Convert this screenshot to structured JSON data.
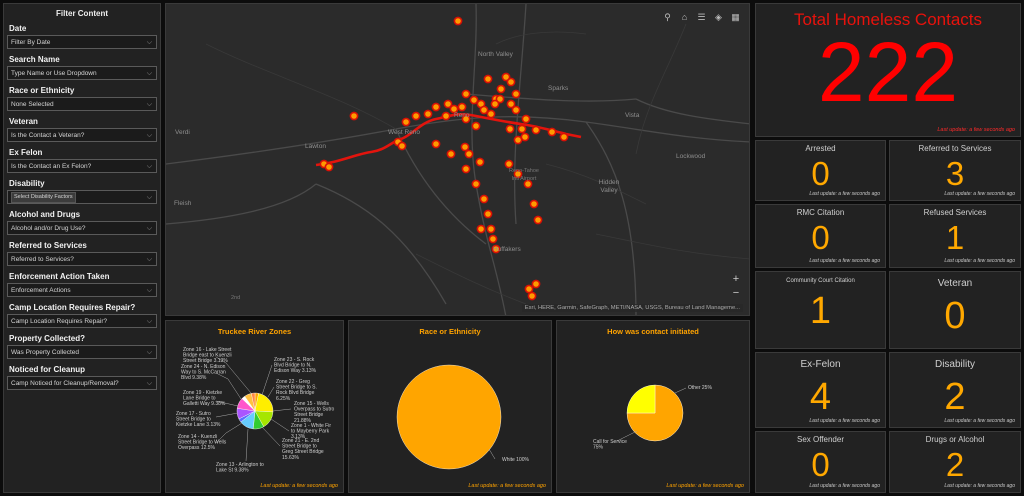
{
  "filter": {
    "title": "Filter Content",
    "fields": [
      {
        "label": "Date",
        "value": "Filter By Date"
      },
      {
        "label": "Search Name",
        "value": "Type Name or Use Dropdown"
      },
      {
        "label": "Race or Ethnicity",
        "value": "None Selected"
      },
      {
        "label": "Veteran",
        "value": "Is the Contact a Veteran?"
      },
      {
        "label": "Ex Felon",
        "value": "Is the Contact an Ex Felon?"
      },
      {
        "label": "Disability",
        "value": "Select Disability Factors"
      },
      {
        "label": "Alcohol and Drugs",
        "value": "Alcohol and/or Drug Use?"
      },
      {
        "label": "Referred to Services",
        "value": "Referred to Services?"
      },
      {
        "label": "Enforcement Action Taken",
        "value": "Enforcement Actions"
      },
      {
        "label": "Camp Location Requires Repair?",
        "value": "Camp Location Requires Repair?"
      },
      {
        "label": "Property Collected?",
        "value": "Was Property Collected"
      },
      {
        "label": "Noticed for Cleanup",
        "value": "Camp Noticed for Cleanup/Removal?"
      }
    ]
  },
  "map": {
    "labels": [
      "North Valley",
      "Sparks",
      "Vista",
      "Verdi",
      "West Reno",
      "Reno",
      "Lawton",
      "Lockwood",
      "Hidden Valley",
      "Huffakers",
      "Reno-Tahoe Intl Airport",
      "Fleish",
      "2nd"
    ],
    "attribution": "Esri, HERE, Garmin, SafeGraph, METI/NASA, USGS, Bureau of Land Manageme..."
  },
  "total": {
    "title": "Total Homeless Contacts",
    "value": "222",
    "updated": "Last update: a few seconds ago",
    "color": "#ff0000"
  },
  "stats": [
    {
      "label": "Arrested",
      "value": "0",
      "updated": "Last update: a few seconds ago"
    },
    {
      "label": "Referred to Services",
      "value": "3",
      "updated": "Last update: a few seconds ago"
    },
    {
      "label": "RMC Citation",
      "value": "0",
      "updated": "Last update: a few seconds ago"
    },
    {
      "label": "Refused Services",
      "value": "1",
      "updated": "Last update: a few seconds ago"
    },
    {
      "label": "Community Court Citation",
      "value": "1",
      "updated": ""
    },
    {
      "label": "Veteran",
      "value": "0",
      "updated": ""
    },
    {
      "label": "Ex-Felon",
      "value": "4",
      "updated": "Last update: a few seconds ago"
    },
    {
      "label": "Disability",
      "value": "2",
      "updated": "Last update: a few seconds ago"
    },
    {
      "label": "Sex Offender",
      "value": "0",
      "updated": "Last update: a few seconds ago"
    },
    {
      "label": "Drugs or Alcohol",
      "value": "2",
      "updated": "Last update: a few seconds ago"
    }
  ],
  "chart_updated": "Last update: a few seconds ago",
  "chart_data": [
    {
      "type": "pie",
      "title": "Truckee River Zones",
      "slices": [
        {
          "label": "Zone 1 - White Fir to Mayberry Park",
          "pct": 3.13,
          "color": "#ffa500"
        },
        {
          "label": "Zone 15 - Wells Overpass to Sutro Street Bridge",
          "pct": 21.88,
          "color": "#ffee00"
        },
        {
          "label": "Zone 21 - E. 2nd Street Bridge to Greg Street Bridge",
          "pct": 15.63,
          "color": "#a6e600"
        },
        {
          "label": "Zone 13 - Arlington to Lake St",
          "pct": 9.38,
          "color": "#33cc33"
        },
        {
          "label": "Zone 14 - Kuenzli Street Bridge to Wells Overpass",
          "pct": 12.5,
          "color": "#66ccff"
        },
        {
          "label": "Zone 17 - Sutro Street Bridge to Kietzke Lane",
          "pct": 3.13,
          "color": "#5b6cff"
        },
        {
          "label": "Zone 19 - Kietzke Lane Bridge to Galletti Way",
          "pct": 9.38,
          "color": "#aa55ff"
        },
        {
          "label": "Zone 24 - N. Edison Way to S. McCarran Blvd",
          "pct": 9.38,
          "color": "#ff55cc"
        },
        {
          "label": "Zone 16 - Lake Street Bridge east to Kuenzli Street Bridge",
          "pct": 3.13,
          "color": "#ffffff"
        },
        {
          "label": "Zone 22 - Greg Street Bridge to S. Rock Blvd Bridge",
          "pct": 6.25,
          "color": "#ffc040"
        },
        {
          "label": "Zone 23 - S. Rock Blvd Bridge to N. Edison Way",
          "pct": 3.13,
          "color": "#ff8844"
        }
      ],
      "callouts": [
        {
          "text": "Zone 16 - Lake Street Bridge east to Kuenzli Street Bridge 3.13%",
          "side": "left"
        },
        {
          "text": "Zone 24 - N. Edison Way to S. McCarran Blvd 9.38%",
          "side": "left"
        },
        {
          "text": "Zone 19 - Kietzke Lane Bridge to Galletti Way 9.38%",
          "side": "left"
        },
        {
          "text": "Zone 17 - Sutro Street Bridge to Kietzke Lane 3.13%",
          "side": "left"
        },
        {
          "text": "Zone 14 - Kuenzli Street Bridge to Wells Overpass 12.5%",
          "side": "left"
        },
        {
          "text": "Zone 13 - Arlington to Lake St 9.38%",
          "side": "bottom"
        },
        {
          "text": "Zone 23 - S. Rock Blvd Bridge to N. Edison Way 3.13%",
          "side": "right"
        },
        {
          "text": "Zone 22 - Greg Street Bridge to S. Rock Blvd Bridge 6.25%",
          "side": "right"
        },
        {
          "text": "Zone 15 - Wells Overpass to Sutro Street Bridge 21.88%",
          "side": "right"
        },
        {
          "text": "Zone 1 - White Fir to Mayberry Park 3.13%",
          "side": "right"
        },
        {
          "text": "Zone 21 - E. 2nd Street Bridge to Greg Street Bridge 15.63%",
          "side": "right"
        }
      ]
    },
    {
      "type": "pie",
      "title": "Race or Ethnicity",
      "slices": [
        {
          "label": "White",
          "pct": 100,
          "color": "#ffa500"
        }
      ],
      "callouts": [
        {
          "text": "White 100%",
          "side": "right"
        }
      ]
    },
    {
      "type": "pie",
      "title": "How was contact initiated",
      "slices": [
        {
          "label": "Call for Service",
          "pct": 75,
          "color": "#ffa500"
        },
        {
          "label": "Other",
          "pct": 25,
          "color": "#ffff00"
        }
      ],
      "callouts": [
        {
          "text": "Other 25%",
          "side": "right"
        },
        {
          "text": "Call for Service 75%",
          "side": "left"
        }
      ]
    }
  ]
}
